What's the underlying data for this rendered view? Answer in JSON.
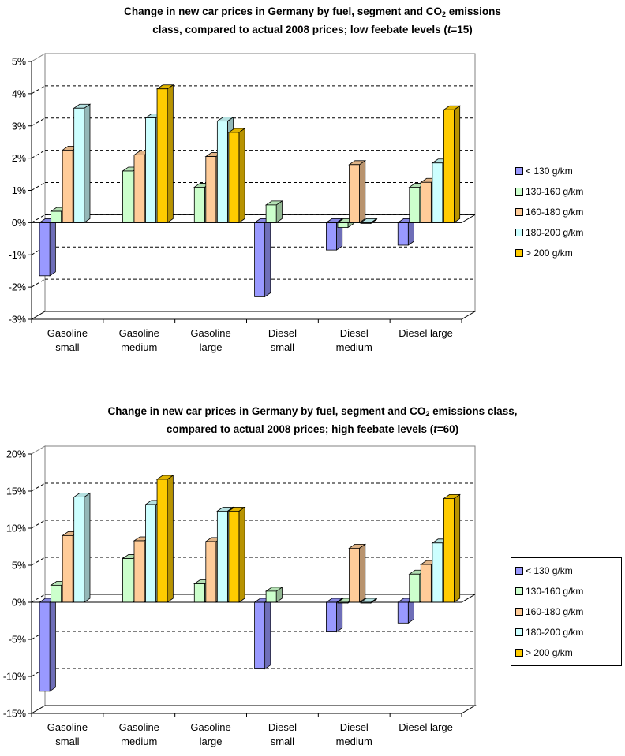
{
  "colors": {
    "lt130": "#9999ff",
    "g130_160": "#ccffcc",
    "g160_180": "#ffcc99",
    "g180_200": "#ccffff",
    "gt200": "#ffcc00"
  },
  "chart_data": [
    {
      "type": "bar",
      "title_pre": "Change in new car prices in Germany by fuel, segment and CO",
      "title_sub": "2",
      "title_post": " emissions",
      "title_line2": "class, compared to actual 2008 prices; low feebate levels (",
      "title_t": "t",
      "title_end": "=15)",
      "categories": [
        [
          "Gasoline",
          "small"
        ],
        [
          "Gasoline",
          "medium"
        ],
        [
          "Gasoline",
          "large"
        ],
        [
          "Diesel",
          "small"
        ],
        [
          "Diesel",
          "medium"
        ],
        [
          "Diesel large"
        ]
      ],
      "ytick_labels": [
        "-3%",
        "-2%",
        "-1%",
        "0%",
        "1%",
        "2%",
        "3%",
        "4%",
        "5%"
      ],
      "ylim": [
        -3,
        5
      ],
      "ystep": 1,
      "grid": "dashed horizontal",
      "legend_position": "right",
      "series": [
        {
          "name": "< 130 g/km",
          "color_key": "lt130",
          "values": [
            -1.65,
            null,
            null,
            -2.3,
            -0.85,
            -0.7
          ]
        },
        {
          "name": "130-160 g/km",
          "color_key": "g130_160",
          "values": [
            0.35,
            1.6,
            1.1,
            0.55,
            -0.15,
            1.1
          ]
        },
        {
          "name": "160-180 g/km",
          "color_key": "g160_180",
          "values": [
            2.25,
            2.1,
            2.05,
            null,
            1.8,
            1.25
          ]
        },
        {
          "name": "180-200 g/km",
          "color_key": "g180_200",
          "values": [
            3.55,
            3.25,
            3.15,
            null,
            0.0,
            1.85
          ]
        },
        {
          "name": "> 200 g/km",
          "color_key": "gt200",
          "values": [
            null,
            4.15,
            2.8,
            null,
            null,
            3.5
          ]
        }
      ]
    },
    {
      "type": "bar",
      "title_pre": "Change in new car prices in Germany by fuel, segment and CO",
      "title_sub": "2",
      "title_post": " emissions class,",
      "title_line2": "compared to actual 2008 prices; high feebate levels (",
      "title_t": "t",
      "title_end": "=60)",
      "categories": [
        [
          "Gasoline",
          "small"
        ],
        [
          "Gasoline",
          "medium"
        ],
        [
          "Gasoline",
          "large"
        ],
        [
          "Diesel",
          "small"
        ],
        [
          "Diesel",
          "medium"
        ],
        [
          "Diesel large"
        ]
      ],
      "ytick_labels": [
        "-15%",
        "-10%",
        "-5%",
        "0%",
        "5%",
        "10%",
        "15%",
        "20%"
      ],
      "ylim": [
        -15,
        20
      ],
      "ystep": 5,
      "grid": "dashed horizontal",
      "legend_position": "right",
      "series": [
        {
          "name": "< 130 g/km",
          "color_key": "lt130",
          "values": [
            -12.0,
            null,
            null,
            -9.0,
            -4.0,
            -2.8
          ]
        },
        {
          "name": "130-160 g/km",
          "color_key": "g130_160",
          "values": [
            2.3,
            5.9,
            2.5,
            1.5,
            0.0,
            3.8
          ]
        },
        {
          "name": "160-180 g/km",
          "color_key": "g160_180",
          "values": [
            9.0,
            8.3,
            8.2,
            null,
            7.3,
            5.1
          ]
        },
        {
          "name": "180-200 g/km",
          "color_key": "g180_200",
          "values": [
            14.2,
            13.2,
            12.3,
            null,
            0.0,
            8.0
          ]
        },
        {
          "name": "> 200 g/km",
          "color_key": "gt200",
          "values": [
            null,
            16.6,
            12.3,
            null,
            null,
            14.0
          ]
        }
      ]
    }
  ]
}
